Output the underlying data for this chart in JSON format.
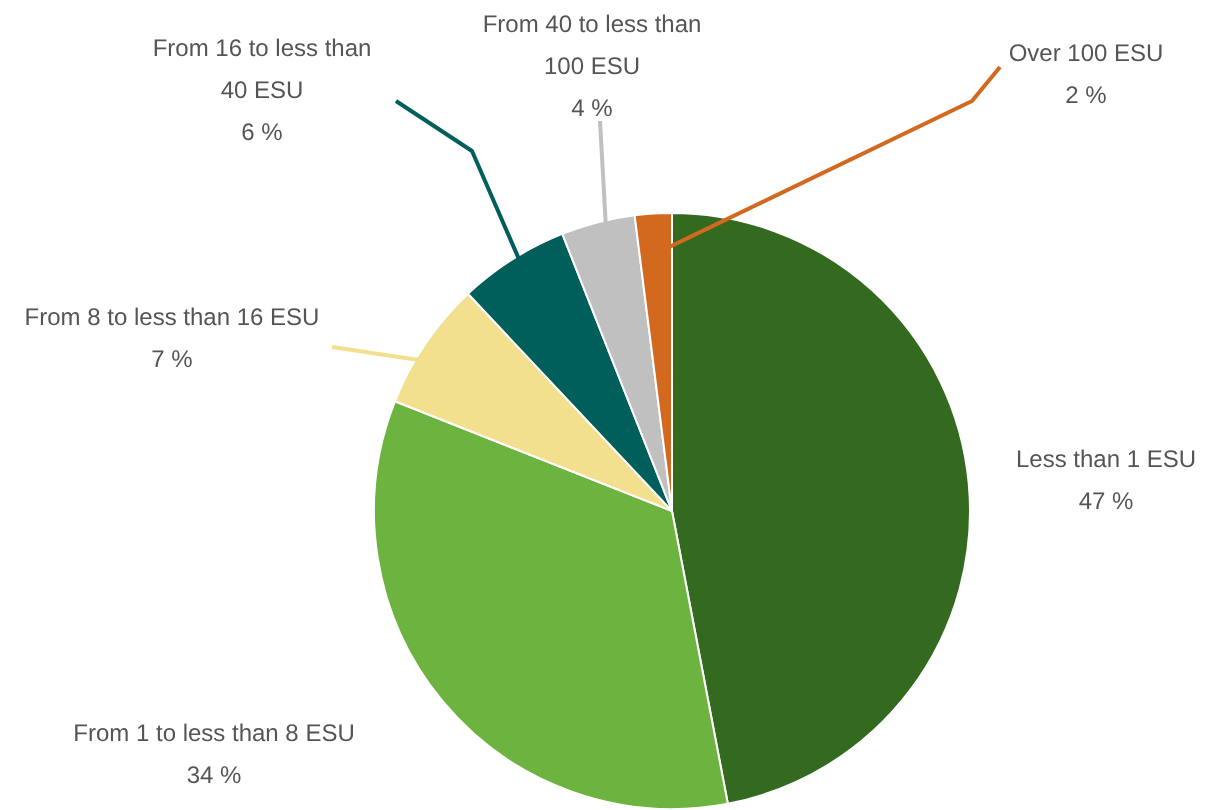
{
  "chart_data": {
    "type": "pie",
    "categories": [
      "Less than 1 ESU",
      "From 1 to less than 8 ESU",
      "From 8 to less than 16 ESU",
      "From 16 to less than 40 ESU",
      "From 40 to less than 100 ESU",
      "Over 100 ESU"
    ],
    "values": [
      47,
      34,
      7,
      6,
      4,
      2
    ],
    "colors": [
      "#336a1f",
      "#6db33f",
      "#f2e08f",
      "#005f5a",
      "#c0c0c0",
      "#d2691e"
    ],
    "value_labels": [
      "47 %",
      "34 %",
      "7 %",
      "6 %",
      "4 %",
      "2 %"
    ],
    "legend": false
  }
}
